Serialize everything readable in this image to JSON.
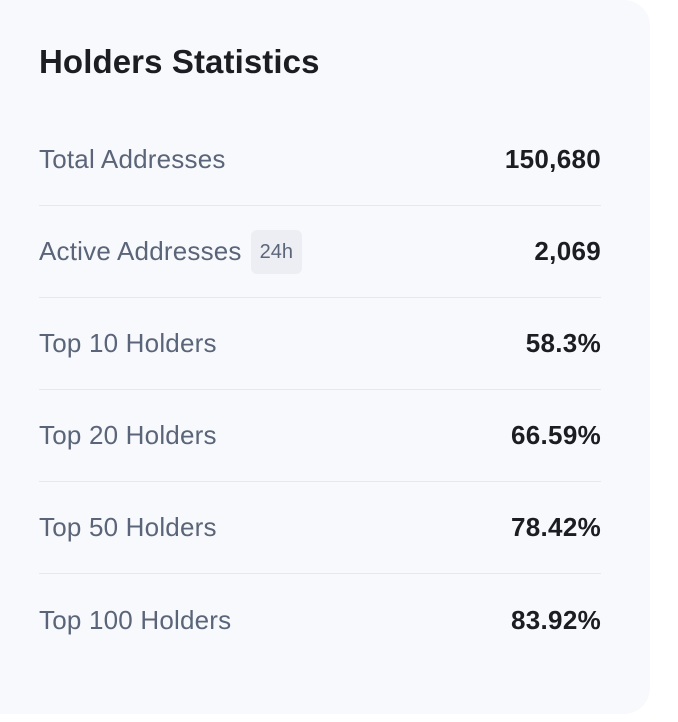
{
  "card": {
    "title": "Holders Statistics",
    "rows": [
      {
        "label": "Total Addresses",
        "badge": "",
        "value": "150,680"
      },
      {
        "label": "Active Addresses",
        "badge": "24h",
        "value": "2,069"
      },
      {
        "label": "Top 10 Holders",
        "badge": "",
        "value": "58.3%"
      },
      {
        "label": "Top 20 Holders",
        "badge": "",
        "value": "66.59%"
      },
      {
        "label": "Top 50 Holders",
        "badge": "",
        "value": "78.42%"
      },
      {
        "label": "Top 100 Holders",
        "badge": "",
        "value": "83.92%"
      }
    ]
  },
  "colors": {
    "card_background": "#f8f9fc",
    "label_text": "#5b6579",
    "value_text": "#1b1d22",
    "divider": "#e6e8ee",
    "badge_background": "#eceef3"
  }
}
